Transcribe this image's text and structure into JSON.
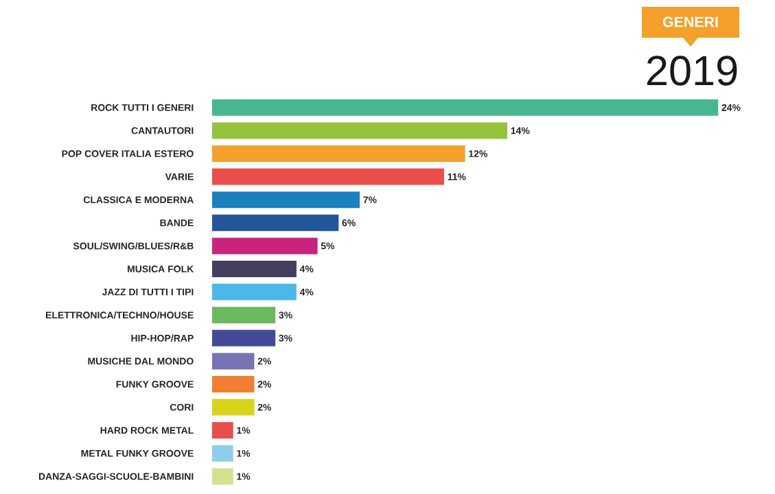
{
  "chart_data": {
    "type": "bar",
    "orientation": "horizontal",
    "title": "2019",
    "subtitle": "GENERI",
    "categories": [
      "ROCK TUTTI I GENERI",
      "CANTAUTORI",
      "POP COVER ITALIA ESTERO",
      "VARIE",
      "CLASSICA E MODERNA",
      "BANDE",
      "SOUL/SWING/BLUES/R&B",
      "MUSICA FOLK",
      "JAZZ DI TUTTI I TIPI",
      "ELETTRONICA/TECHNO/HOUSE",
      "HIP-HOP/RAP",
      "MUSICHE DAL MONDO",
      "FUNKY GROOVE",
      "CORI",
      "HARD ROCK METAL",
      "METAL FUNKY GROOVE",
      "DANZA-SAGGI-SCUOLE-BAMBINI"
    ],
    "values": [
      24,
      14,
      12,
      11,
      7,
      6,
      5,
      4,
      4,
      3,
      3,
      2,
      2,
      2,
      1,
      1,
      1
    ],
    "value_labels": [
      "24%",
      "14%",
      "12%",
      "11%",
      "7%",
      "6%",
      "5%",
      "4%",
      "4%",
      "3%",
      "3%",
      "2%",
      "2%",
      "2%",
      "1%",
      "1%",
      "1%"
    ],
    "colors": [
      "#48b78f",
      "#97c23c",
      "#f4a02a",
      "#e94e4a",
      "#1b80c0",
      "#23559a",
      "#c8247e",
      "#443f5e",
      "#4ab8e8",
      "#6bb85e",
      "#434b98",
      "#7674b5",
      "#f07f32",
      "#d8d41c",
      "#e84f4a",
      "#8fcdec",
      "#d4e08f"
    ],
    "tick_labels": "y"
  }
}
